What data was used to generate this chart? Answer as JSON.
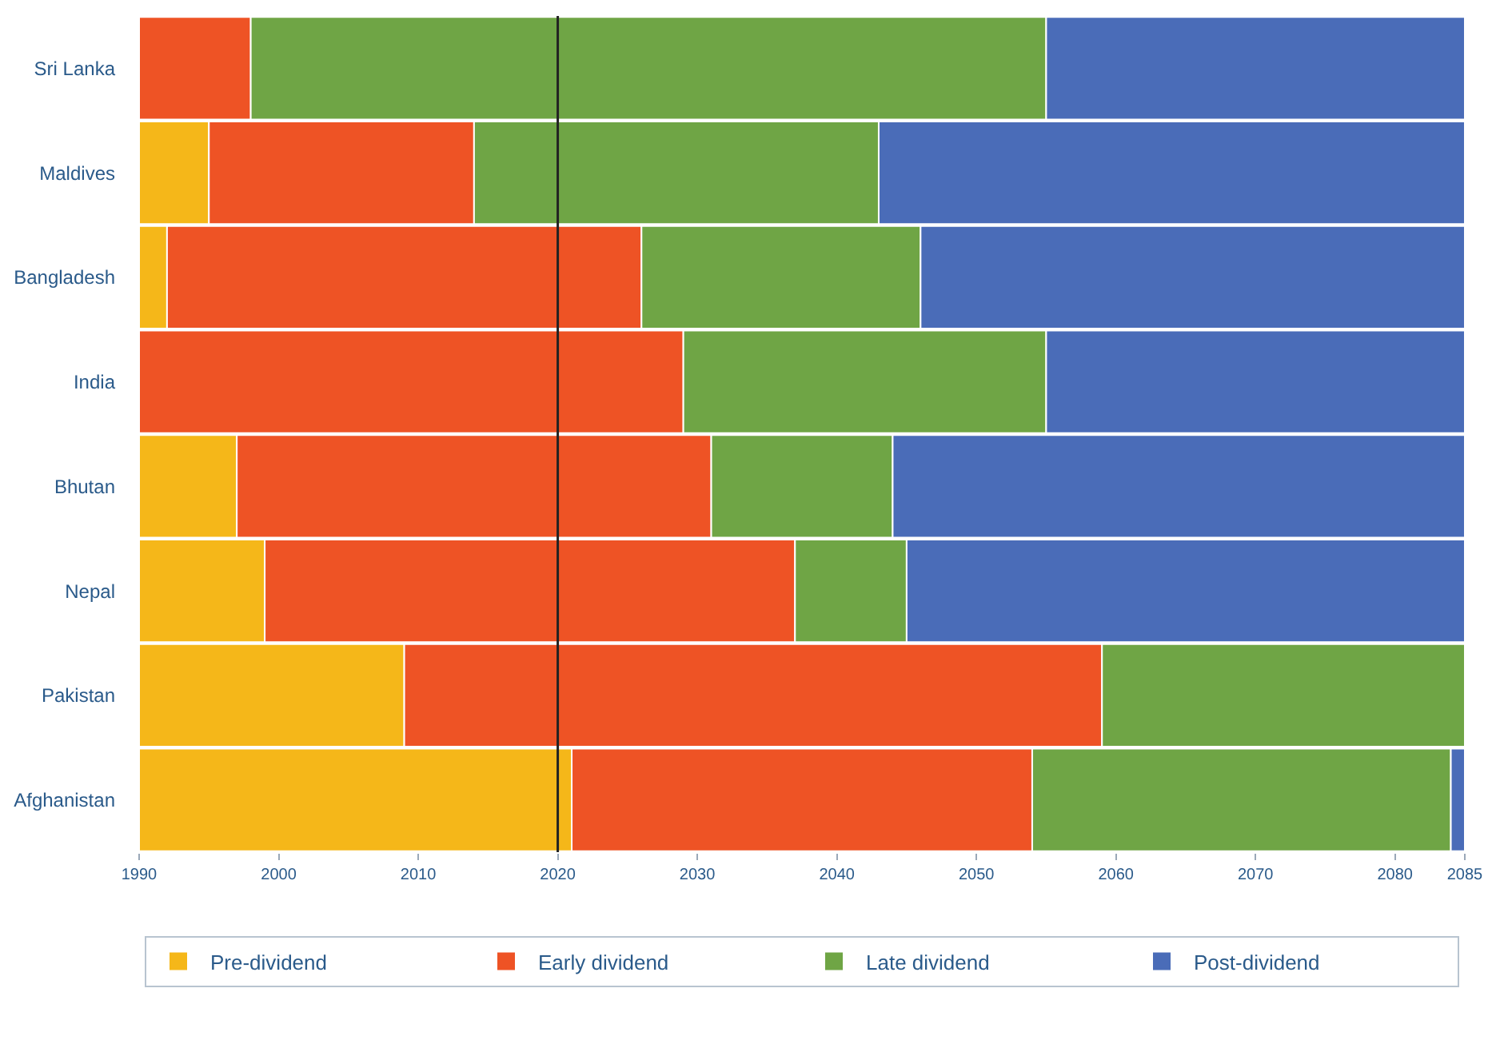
{
  "chart_data": {
    "type": "bar",
    "orientation": "horizontal",
    "stacked": false,
    "categories": [
      "Sri Lanka",
      "Maldives",
      "Bangladesh",
      "India",
      "Bhutan",
      "Nepal",
      "Pakistan",
      "Afghanistan"
    ],
    "series": [
      {
        "name": "Pre-dividend",
        "color": "#f5b719",
        "base": [
          null,
          1990,
          1990,
          null,
          1990,
          1990,
          1990,
          1990
        ],
        "values": [
          null,
          5,
          2,
          null,
          7,
          9,
          19,
          31
        ]
      },
      {
        "name": "Early dividend",
        "color": "#ee5325",
        "base": [
          1990,
          1995,
          1992,
          1990,
          1997,
          1999,
          2009,
          2021
        ],
        "values": [
          8,
          19,
          34,
          39,
          34,
          38,
          50,
          33
        ]
      },
      {
        "name": "Late dividend",
        "color": "#6fa545",
        "base": [
          1998,
          2014,
          2026,
          2029,
          2031,
          2037,
          2059,
          2054
        ],
        "values": [
          57,
          29,
          20,
          26,
          13,
          8,
          26,
          30
        ]
      },
      {
        "name": "Post-dividend",
        "color": "#4a6cb8",
        "base": [
          2055,
          2043,
          2046,
          2055,
          2044,
          2045,
          null,
          2084
        ],
        "values": [
          30,
          42,
          39,
          30,
          41,
          40,
          null,
          1
        ]
      }
    ],
    "xlim": [
      1990,
      2085
    ],
    "xticks": [
      1990,
      2000,
      2010,
      2020,
      2030,
      2040,
      2050,
      2060,
      2070,
      2080,
      2085
    ],
    "ref_lines": [
      {
        "axis": "x",
        "value": 2020,
        "color": "#222222"
      }
    ],
    "grid": false,
    "legend": "bottom"
  }
}
